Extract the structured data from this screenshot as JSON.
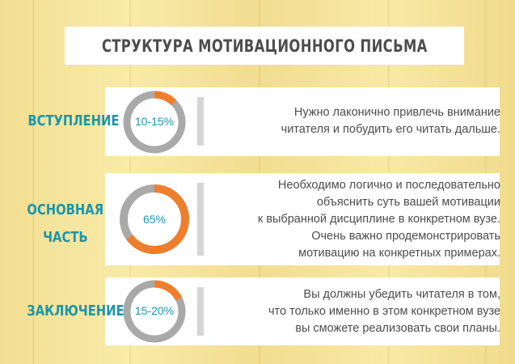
{
  "title": "СТРУКТУРА МОТИВАЦИОННОГО ПИСЬМА",
  "sections": [
    {
      "label_lines": [
        "ВСТУПЛЕНИЕ"
      ],
      "percent_label": "10-15%",
      "fill_fraction": 0.125,
      "description_lines": [
        "Нужно лаконично привлечь внимание",
        "читателя и побудить его читать дальше."
      ]
    },
    {
      "label_lines": [
        "ОСНОВНАЯ",
        "ЧАСТЬ"
      ],
      "percent_label": "65%",
      "fill_fraction": 0.65,
      "description_lines": [
        "Необходимо логично и последовательно",
        "объяснить суть вашей мотивации",
        "к выбранной дисциплине в конкретном вузе.",
        "Очень важно продемонстрировать",
        "мотивацию на конкретных примерах."
      ]
    },
    {
      "label_lines": [
        "ЗАКЛЮЧЕНИЕ"
      ],
      "percent_label": "15-20%",
      "fill_fraction": 0.175,
      "description_lines": [
        "Вы должны убедить читателя в том,",
        "что только именно в этом конкретном вузе",
        "вы сможете реализовать свои планы."
      ]
    }
  ],
  "colors": {
    "accent": "#1a96ad",
    "ring_fill": "#ef7e2c",
    "ring_track": "#a9a9a9",
    "text": "#4d4d4d",
    "divider": "#d5d5d5"
  }
}
